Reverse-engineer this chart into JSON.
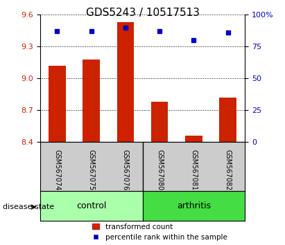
{
  "title": "GDS5243 / 10517513",
  "samples": [
    "GSM567074",
    "GSM567075",
    "GSM567076",
    "GSM567080",
    "GSM567081",
    "GSM567082"
  ],
  "bar_values": [
    9.12,
    9.18,
    9.53,
    8.78,
    8.46,
    8.82
  ],
  "percentile_values": [
    87,
    87,
    90,
    87,
    80,
    86
  ],
  "ymin": 8.4,
  "ymax": 9.6,
  "y_ticks": [
    8.4,
    8.7,
    9.0,
    9.3,
    9.6
  ],
  "y2min": 0,
  "y2max": 100,
  "y2_ticks": [
    0,
    25,
    50,
    75,
    100
  ],
  "bar_color": "#cc2200",
  "dot_color": "#0000cc",
  "control_color": "#aaffaa",
  "arthritis_color": "#44dd44",
  "label_bg_color": "#cccccc",
  "groups": [
    {
      "label": "control",
      "indices": [
        0,
        1,
        2
      ]
    },
    {
      "label": "arthritis",
      "indices": [
        3,
        4,
        5
      ]
    }
  ],
  "disease_state_label": "disease state",
  "legend_bar_label": "transformed count",
  "legend_dot_label": "percentile rank within the sample"
}
